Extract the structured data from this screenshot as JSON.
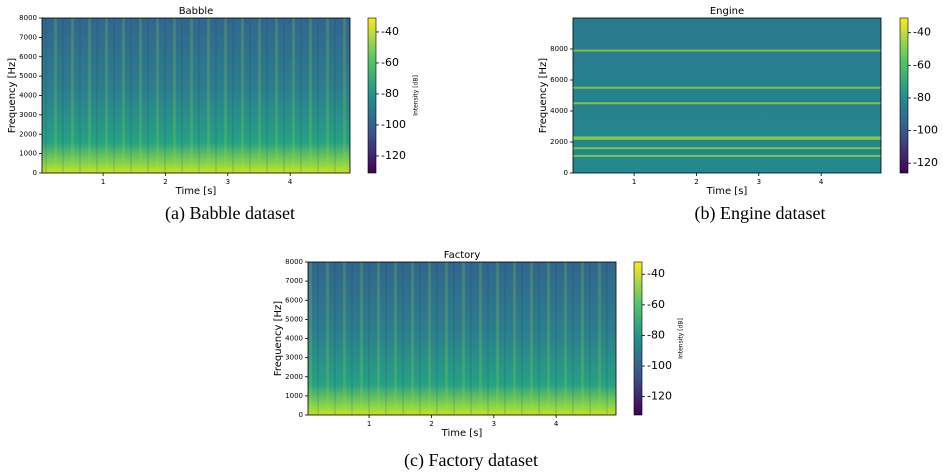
{
  "chart_data": [
    {
      "type": "spectrogram",
      "title": "Babble",
      "xlabel": "Time [s]",
      "ylabel": "Frequency [Hz]",
      "xlim": [
        0.02,
        4.96
      ],
      "xticks": [
        1,
        2,
        3,
        4
      ],
      "ylim": [
        0,
        8000
      ],
      "yticks": [
        0,
        1000,
        2000,
        3000,
        4000,
        5000,
        6000,
        7000,
        8000
      ],
      "colorbar": {
        "label": "Intensity [dB]",
        "lim": [
          -131,
          -31
        ],
        "ticks": [
          -40,
          -60,
          -80,
          -100,
          -120
        ]
      },
      "caption": "(a) Babble dataset"
    },
    {
      "type": "spectrogram",
      "title": "Engine",
      "xlabel": "Time [s]",
      "ylabel": "Frequency [Hz]",
      "xlim": [
        0.02,
        4.96
      ],
      "xticks": [
        1,
        2,
        3,
        4
      ],
      "ylim": [
        0,
        10000
      ],
      "yticks": [
        0,
        2000,
        4000,
        6000,
        8000
      ],
      "colorbar": {
        "lim": [
          -126,
          -31
        ],
        "ticks": [
          -40,
          -60,
          -80,
          -100,
          -120
        ]
      },
      "caption": "(b) Engine dataset"
    },
    {
      "type": "spectrogram",
      "title": "Factory",
      "xlabel": "Time [s]",
      "ylabel": "Frequency [Hz]",
      "xlim": [
        0.02,
        4.96
      ],
      "xticks": [
        1,
        2,
        3,
        4
      ],
      "ylim": [
        0,
        8000
      ],
      "yticks": [
        0,
        1000,
        2000,
        3000,
        4000,
        5000,
        6000,
        7000,
        8000
      ],
      "colorbar": {
        "label": "Intensity [dB]",
        "lim": [
          -132,
          -32
        ],
        "ticks": [
          -40,
          -60,
          -80,
          -100,
          -120
        ]
      },
      "caption": "(c) Factory dataset"
    }
  ]
}
